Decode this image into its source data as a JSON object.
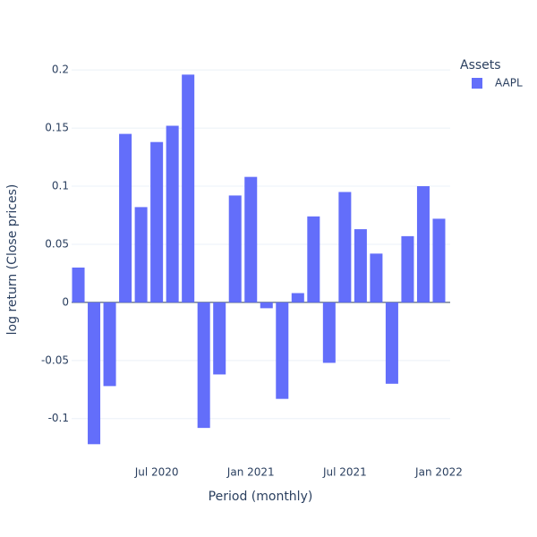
{
  "chart_data": {
    "type": "bar",
    "x_label": "Period (monthly)",
    "y_label": "log return (Close prices)",
    "legend_title": "Assets",
    "legend_position": "top-right",
    "x": [
      "2020-02",
      "2020-03",
      "2020-04",
      "2020-05",
      "2020-06",
      "2020-07",
      "2020-08",
      "2020-09",
      "2020-10",
      "2020-11",
      "2020-12",
      "2021-01",
      "2021-02",
      "2021-03",
      "2021-04",
      "2021-05",
      "2021-06",
      "2021-07",
      "2021-08",
      "2021-09",
      "2021-10",
      "2021-11",
      "2021-12",
      "2022-01"
    ],
    "series": [
      {
        "name": "AAPL",
        "color": "#636efa",
        "values": [
          0.03,
          -0.122,
          -0.072,
          0.145,
          0.082,
          0.138,
          0.152,
          0.196,
          -0.108,
          -0.062,
          0.092,
          0.108,
          -0.005,
          -0.083,
          0.008,
          0.074,
          -0.052,
          0.095,
          0.063,
          0.042,
          -0.07,
          0.057,
          0.1,
          0.072
        ]
      }
    ],
    "xlim": [
      "2020-01",
      "2022-02"
    ],
    "xticks": [
      {
        "value": "2020-07",
        "label": "Jul 2020"
      },
      {
        "value": "2021-01",
        "label": "Jan 2021"
      },
      {
        "value": "2021-07",
        "label": "Jul 2021"
      },
      {
        "value": "2022-01",
        "label": "Jan 2022"
      }
    ],
    "ylim": [
      -0.131,
      0.214
    ],
    "yticks": [
      -0.1,
      -0.05,
      0,
      0.05,
      0.1,
      0.15,
      0.2
    ],
    "grid": true
  }
}
